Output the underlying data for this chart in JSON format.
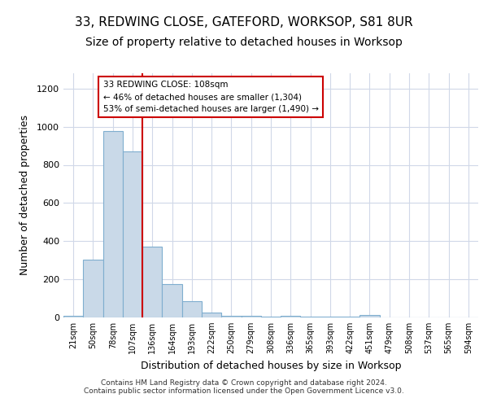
{
  "title1": "33, REDWING CLOSE, GATEFORD, WORKSOP, S81 8UR",
  "title2": "Size of property relative to detached houses in Worksop",
  "xlabel": "Distribution of detached houses by size in Worksop",
  "ylabel": "Number of detached properties",
  "bin_labels": [
    "21sqm",
    "50sqm",
    "78sqm",
    "107sqm",
    "136sqm",
    "164sqm",
    "193sqm",
    "222sqm",
    "250sqm",
    "279sqm",
    "308sqm",
    "336sqm",
    "365sqm",
    "393sqm",
    "422sqm",
    "451sqm",
    "479sqm",
    "508sqm",
    "537sqm",
    "565sqm",
    "594sqm"
  ],
  "bar_values": [
    10,
    305,
    975,
    870,
    370,
    175,
    85,
    27,
    10,
    7,
    5,
    7,
    3,
    3,
    3,
    12,
    1,
    1,
    1,
    1,
    1
  ],
  "bar_color": "#c9d9e8",
  "bar_edgecolor": "#7faecf",
  "ylim": [
    0,
    1280
  ],
  "yticks": [
    0,
    200,
    400,
    600,
    800,
    1000,
    1200
  ],
  "red_line_x": 3.5,
  "annotation_text": "33 REDWING CLOSE: 108sqm\n← 46% of detached houses are smaller (1,304)\n53% of semi-detached houses are larger (1,490) →",
  "annotation_box_color": "#ffffff",
  "annotation_border_color": "#cc0000",
  "footer_text": "Contains HM Land Registry data © Crown copyright and database right 2024.\nContains public sector information licensed under the Open Government Licence v3.0.",
  "background_color": "#ffffff",
  "grid_color": "#d0d8e8",
  "title1_fontsize": 11,
  "title2_fontsize": 10
}
